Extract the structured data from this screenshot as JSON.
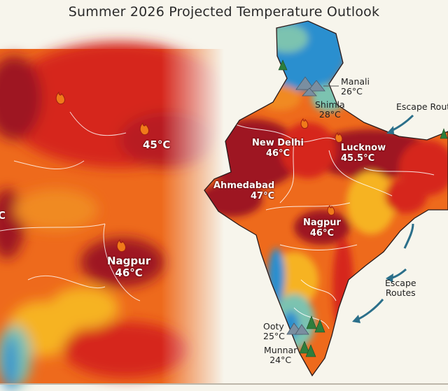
{
  "title": "Summer 2026 Projected Temperature Outlook",
  "colors": {
    "extreme": "#9e1424",
    "very_hot": "#d6261c",
    "hot": "#ee6a1c",
    "warm": "#f6b321",
    "mild": "#7cc3b0",
    "cool": "#2a8fcf",
    "arrow": "#2b6f8a"
  },
  "zoom_panel": {
    "labels": [
      {
        "city": "",
        "temp": "45°C"
      },
      {
        "city": "Nagpur",
        "temp": "46°C"
      },
      {
        "city": "",
        "temp": "C"
      }
    ]
  },
  "map": {
    "hot_cities": [
      {
        "city": "New Delhi",
        "temp": "46°C"
      },
      {
        "city": "Lucknow",
        "temp": "45.5°C"
      },
      {
        "city": "Ahmedabad",
        "temp": "47°C"
      },
      {
        "city": "Nagpur",
        "temp": "46°C"
      }
    ],
    "hill_stations": [
      {
        "city": "Manali",
        "temp": "26°C"
      },
      {
        "city": "Shimla",
        "temp": "28°C"
      },
      {
        "city": "Ooty",
        "temp": "25°C"
      },
      {
        "city": "Munnar",
        "temp": "24°C"
      }
    ],
    "escape_routes": [
      "Escape Routes",
      "Escape\nRoutes"
    ]
  }
}
